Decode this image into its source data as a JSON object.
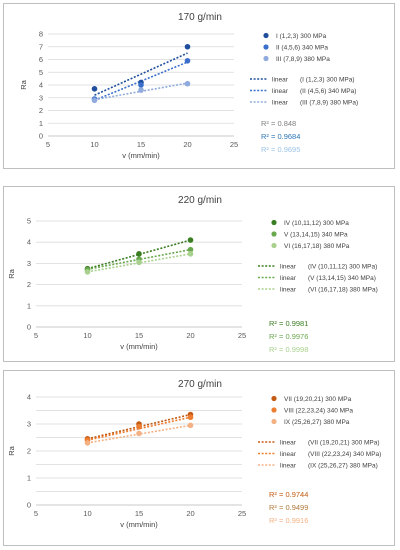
{
  "chart_data": [
    {
      "type": "scatter",
      "title": "170 g/min",
      "xlabel": "v (mm/min)",
      "ylabel": "Ra",
      "xlim": [
        5,
        25
      ],
      "ylim": [
        0,
        8
      ],
      "x_ticks": [
        5,
        10,
        15,
        20,
        25
      ],
      "y_ticks": [
        0,
        1,
        2,
        3,
        4,
        5,
        6,
        7,
        8
      ],
      "grid": true,
      "legend_position": "right",
      "series": [
        {
          "name": "I (1,2,3) 300 MPa",
          "color": "#1f4e9c",
          "x": [
            10,
            15,
            20
          ],
          "y": [
            3.7,
            4.2,
            7.0
          ],
          "trend_label": "linear",
          "trend_name": "(I (1,2,3) 300 MPa)",
          "trend": [
            3.2,
            6.5
          ],
          "r2": "R² = 0.848",
          "r2_color": "#7f7f7f"
        },
        {
          "name": "II (4,5,6) 340 MPa",
          "color": "#3b6fcc",
          "x": [
            10,
            15,
            20
          ],
          "y": [
            2.9,
            4.0,
            5.9
          ],
          "trend_label": "linear",
          "trend_name": "(II (4,5,6) 340 MPa)",
          "trend": [
            2.8,
            5.8
          ],
          "r2": "R² = 0.9684",
          "r2_color": "#2e75b6"
        },
        {
          "name": "III (7,8,9) 380 MPa",
          "color": "#8faadc",
          "x": [
            10,
            15,
            20
          ],
          "y": [
            2.8,
            3.6,
            4.1
          ],
          "trend_label": "linear",
          "trend_name": "(III (7,8,9) 380 MPa)",
          "trend": [
            2.85,
            4.15
          ],
          "r2": "R² = 0.9695",
          "r2_color": "#9dc3e6"
        }
      ]
    },
    {
      "type": "scatter",
      "title": "220 g/min",
      "xlabel": "v (mm/min)",
      "ylabel": "Ra",
      "xlim": [
        5,
        25
      ],
      "ylim": [
        0,
        5
      ],
      "x_ticks": [
        5,
        10,
        15,
        20,
        25
      ],
      "y_ticks": [
        0,
        1,
        2,
        3,
        4,
        5
      ],
      "grid": true,
      "legend_position": "right",
      "series": [
        {
          "name": "IV (10,11,12) 300 MPa",
          "color": "#3a7d22",
          "x": [
            10,
            15,
            20
          ],
          "y": [
            2.75,
            3.45,
            4.1
          ],
          "trend_label": "linear",
          "trend_name": "(IV (10,11,12) 300 MPa)",
          "trend": [
            2.75,
            4.1
          ],
          "r2": "R² = 0.9981",
          "r2_color": "#3a7d22"
        },
        {
          "name": "V (13,14,15) 340 MPa",
          "color": "#6aa84f",
          "x": [
            10,
            15,
            20
          ],
          "y": [
            2.7,
            3.2,
            3.65
          ],
          "trend_label": "linear",
          "trend_name": "(V (13,14,15) 340 MPa)",
          "trend": [
            2.72,
            3.65
          ],
          "r2": "R² = 0.9976",
          "r2_color": "#6aa84f"
        },
        {
          "name": "VI (16,17,18) 380 MPa",
          "color": "#a9d18e",
          "x": [
            10,
            15,
            20
          ],
          "y": [
            2.6,
            3.05,
            3.45
          ],
          "trend_label": "linear",
          "trend_name": "(VI (16,17,18) 380 MPa)",
          "trend": [
            2.6,
            3.45
          ],
          "r2": "R² = 0.9998",
          "r2_color": "#a9d18e"
        }
      ]
    },
    {
      "type": "scatter",
      "title": "270 g/min",
      "xlabel": "v (mm/min)",
      "ylabel": "Ra",
      "xlim": [
        5,
        25
      ],
      "ylim": [
        0,
        4
      ],
      "x_ticks": [
        5,
        10,
        15,
        20,
        25
      ],
      "y_ticks": [
        0,
        0.5,
        1,
        1.5,
        2,
        2.5,
        3,
        3.5,
        4
      ],
      "y_tick_labels": [
        "0",
        "",
        "1",
        "",
        "2",
        "",
        "3",
        "",
        "4"
      ],
      "grid": true,
      "legend_position": "right",
      "series": [
        {
          "name": "VII (19,20,21) 300 MPa",
          "color": "#c55a11",
          "x": [
            10,
            15,
            20
          ],
          "y": [
            2.45,
            3.0,
            3.35
          ],
          "trend_label": "linear",
          "trend_name": "(VII (19,20,21) 300 MPa)",
          "trend": [
            2.45,
            3.35
          ],
          "r2": "R² = 0.9744",
          "r2_color": "#c55a11"
        },
        {
          "name": "VIII (22,23,24) 340 MPa",
          "color": "#ed7d31",
          "x": [
            10,
            15,
            20
          ],
          "y": [
            2.4,
            2.9,
            3.25
          ],
          "trend_label": "linear",
          "trend_name": "(VIII (22,23,24) 340 MPa)",
          "trend": [
            2.4,
            3.25
          ],
          "r2": "R² = 0.9499",
          "r2_color": "#b07a3a"
        },
        {
          "name": "IX (25,26,27) 380 MPa",
          "color": "#f4b183",
          "x": [
            10,
            15,
            20
          ],
          "y": [
            2.3,
            2.65,
            2.95
          ],
          "trend_label": "linear",
          "trend_name": "(IX (25,26,27) 380 MPa)",
          "trend": [
            2.3,
            2.95
          ],
          "r2": "R² = 0.9916",
          "r2_color": "#f4b183"
        }
      ]
    }
  ]
}
